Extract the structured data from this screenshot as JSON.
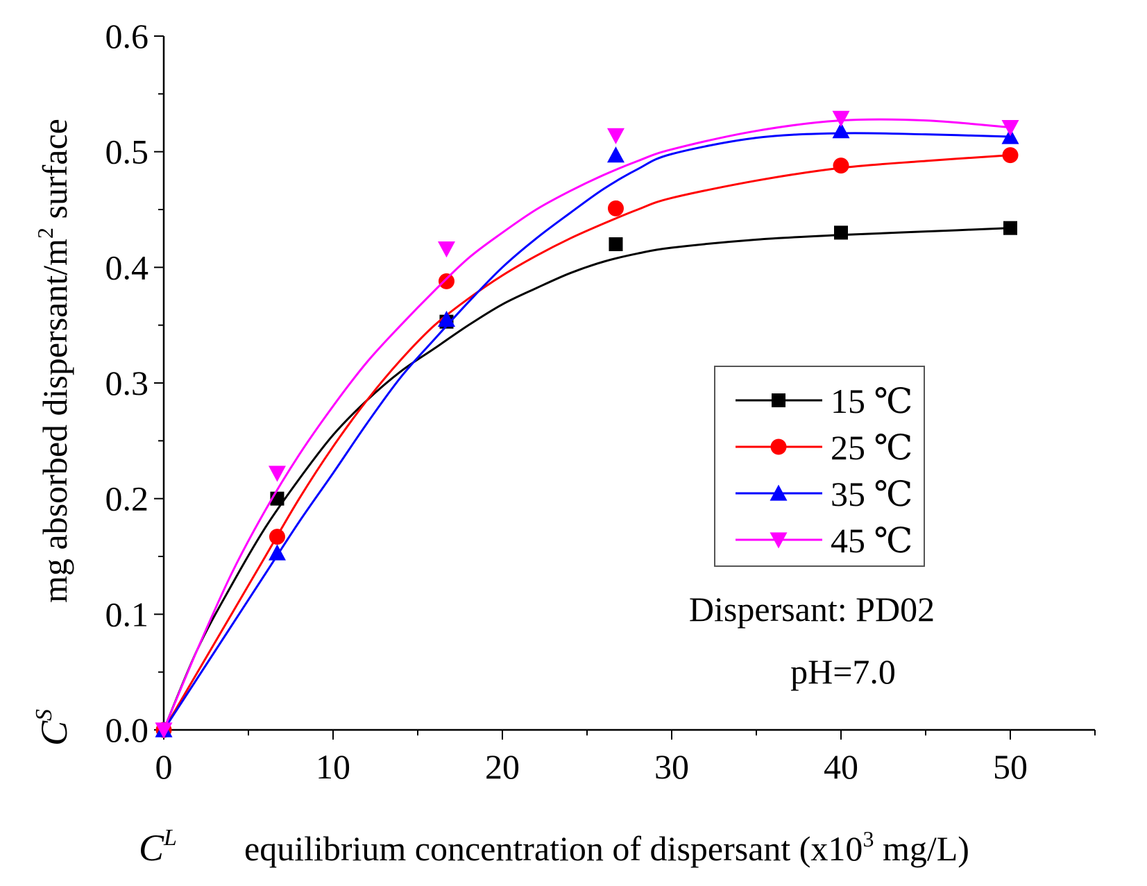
{
  "chart_data": {
    "type": "scatter",
    "xlabel_symbol": "C",
    "xlabel_symbol_sup": "L",
    "xlabel_text": "equilibrium concentration of dispersant (x10",
    "xlabel_text_sup": "3",
    "xlabel_text_end": " mg/L)",
    "ylabel_symbol": "C",
    "ylabel_symbol_sup": "S",
    "ylabel_text": "mg absorbed dispersant/m",
    "ylabel_text_sup": "2",
    "ylabel_text_end": " surface",
    "xlim": [
      0,
      55
    ],
    "ylim": [
      0,
      0.6
    ],
    "xticks": [
      0,
      10,
      20,
      30,
      40,
      50
    ],
    "xtick_labels": [
      "0",
      "10",
      "20",
      "30",
      "40",
      "50"
    ],
    "yticks": [
      0,
      0.1,
      0.2,
      0.3,
      0.4,
      0.5,
      0.6
    ],
    "ytick_labels": [
      "0.0",
      "0.1",
      "0.2",
      "0.3",
      "0.4",
      "0.5",
      "0.6"
    ],
    "legend_position": "middle-right",
    "annotations": [
      "Dispersant: PD02",
      "pH=7.0"
    ],
    "series": [
      {
        "name": "15 ℃",
        "color": "#000000",
        "marker": "square",
        "points": [
          [
            0,
            0
          ],
          [
            6.7,
            0.2
          ],
          [
            16.7,
            0.353
          ],
          [
            26.7,
            0.42
          ],
          [
            40,
            0.43
          ],
          [
            50,
            0.434
          ]
        ],
        "fit": [
          [
            0,
            0
          ],
          [
            2,
            0.07
          ],
          [
            4,
            0.125
          ],
          [
            6,
            0.175
          ],
          [
            8,
            0.217
          ],
          [
            10,
            0.255
          ],
          [
            12,
            0.285
          ],
          [
            14,
            0.31
          ],
          [
            16,
            0.33
          ],
          [
            18,
            0.35
          ],
          [
            20,
            0.368
          ],
          [
            22,
            0.382
          ],
          [
            24,
            0.395
          ],
          [
            26,
            0.405
          ],
          [
            28,
            0.412
          ],
          [
            30,
            0.417
          ],
          [
            35,
            0.424
          ],
          [
            40,
            0.428
          ],
          [
            45,
            0.431
          ],
          [
            50,
            0.434
          ]
        ]
      },
      {
        "name": "25 ℃",
        "color": "#ff0000",
        "marker": "circle",
        "points": [
          [
            0,
            0
          ],
          [
            6.7,
            0.167
          ],
          [
            16.7,
            0.388
          ],
          [
            26.7,
            0.451
          ],
          [
            40,
            0.488
          ],
          [
            50,
            0.497
          ]
        ],
        "fit": [
          [
            0,
            0
          ],
          [
            2,
            0.05
          ],
          [
            4,
            0.1
          ],
          [
            6,
            0.15
          ],
          [
            8,
            0.2
          ],
          [
            10,
            0.245
          ],
          [
            12,
            0.285
          ],
          [
            14,
            0.32
          ],
          [
            16,
            0.35
          ],
          [
            18,
            0.373
          ],
          [
            20,
            0.393
          ],
          [
            22,
            0.41
          ],
          [
            24,
            0.425
          ],
          [
            26,
            0.438
          ],
          [
            28,
            0.45
          ],
          [
            30,
            0.46
          ],
          [
            35,
            0.475
          ],
          [
            40,
            0.486
          ],
          [
            45,
            0.492
          ],
          [
            50,
            0.497
          ]
        ]
      },
      {
        "name": "35 ℃",
        "color": "#0000ff",
        "marker": "triangle-up",
        "points": [
          [
            0,
            0
          ],
          [
            6.7,
            0.153
          ],
          [
            16.7,
            0.355
          ],
          [
            26.7,
            0.497
          ],
          [
            40,
            0.518
          ],
          [
            50,
            0.513
          ]
        ],
        "fit": [
          [
            0,
            0
          ],
          [
            2,
            0.045
          ],
          [
            4,
            0.09
          ],
          [
            6,
            0.135
          ],
          [
            8,
            0.18
          ],
          [
            10,
            0.222
          ],
          [
            12,
            0.265
          ],
          [
            14,
            0.305
          ],
          [
            16,
            0.338
          ],
          [
            18,
            0.37
          ],
          [
            20,
            0.4
          ],
          [
            22,
            0.425
          ],
          [
            24,
            0.447
          ],
          [
            26,
            0.468
          ],
          [
            28,
            0.485
          ],
          [
            30,
            0.498
          ],
          [
            35,
            0.512
          ],
          [
            40,
            0.516
          ],
          [
            45,
            0.515
          ],
          [
            50,
            0.513
          ]
        ]
      },
      {
        "name": "45 ℃",
        "color": "#ff00ff",
        "marker": "triangle-down",
        "points": [
          [
            0,
            0
          ],
          [
            6.7,
            0.222
          ],
          [
            16.7,
            0.416
          ],
          [
            26.7,
            0.514
          ],
          [
            40,
            0.529
          ],
          [
            50,
            0.521
          ]
        ],
        "fit": [
          [
            0,
            0
          ],
          [
            2,
            0.07
          ],
          [
            4,
            0.135
          ],
          [
            6,
            0.19
          ],
          [
            8,
            0.238
          ],
          [
            10,
            0.28
          ],
          [
            12,
            0.318
          ],
          [
            14,
            0.35
          ],
          [
            16,
            0.38
          ],
          [
            18,
            0.408
          ],
          [
            20,
            0.43
          ],
          [
            22,
            0.45
          ],
          [
            24,
            0.466
          ],
          [
            26,
            0.48
          ],
          [
            28,
            0.492
          ],
          [
            30,
            0.502
          ],
          [
            35,
            0.518
          ],
          [
            40,
            0.527
          ],
          [
            45,
            0.527
          ],
          [
            50,
            0.521
          ]
        ]
      }
    ]
  }
}
